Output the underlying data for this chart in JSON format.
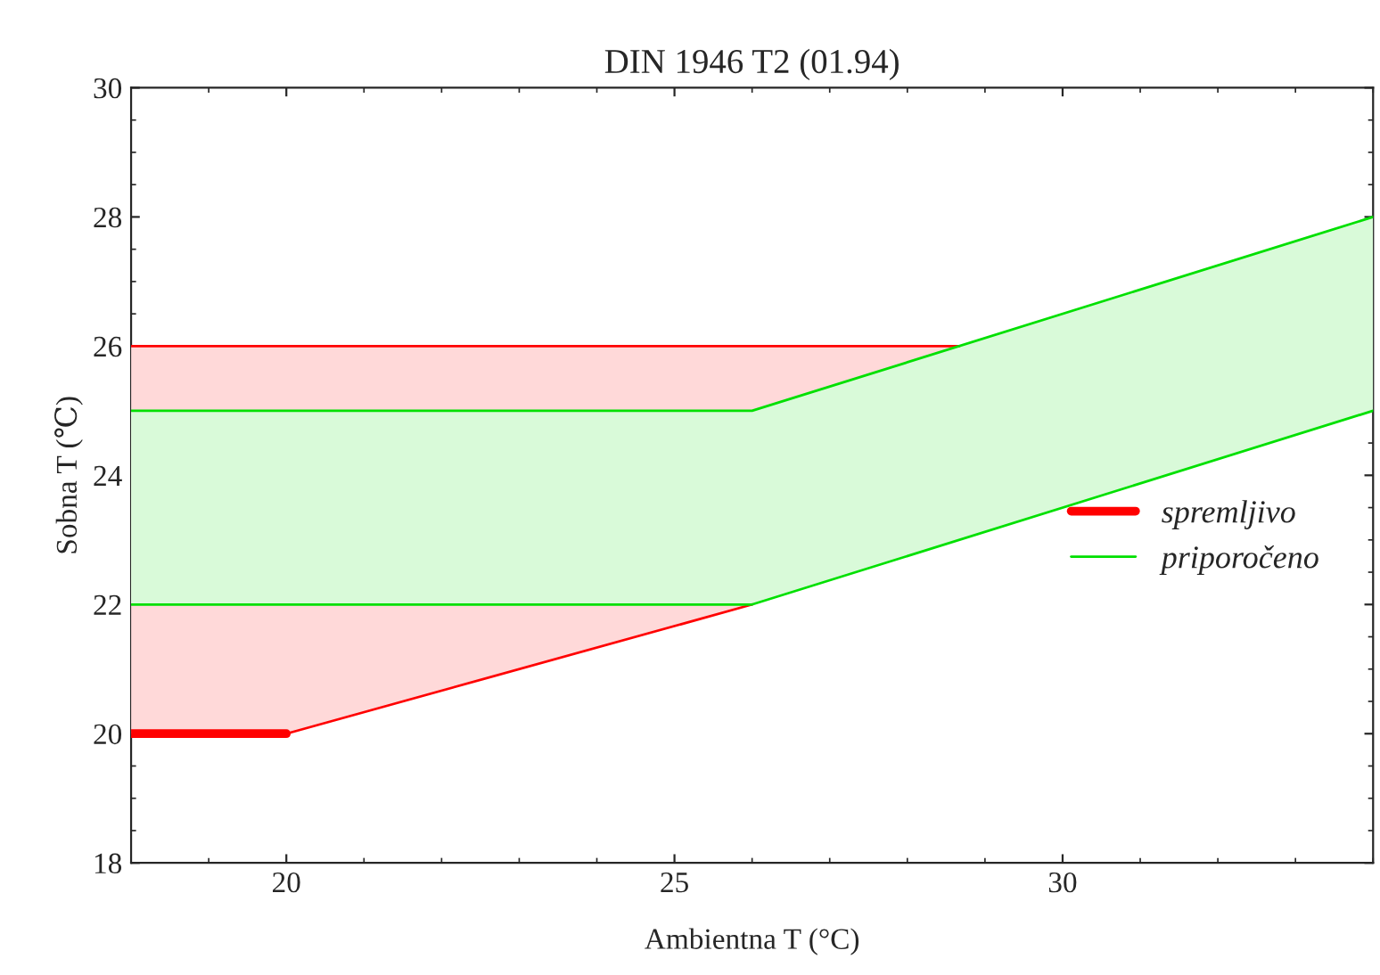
{
  "chart_data": {
    "type": "line",
    "title": "DIN 1946 T2 (01.94)",
    "xlabel": "Ambientna T (°C)",
    "ylabel": "Sobna T (℃)",
    "xlim": [
      18,
      34
    ],
    "ylim": [
      18,
      30
    ],
    "xticks": [
      20,
      25,
      30
    ],
    "yticks": [
      18,
      20,
      22,
      24,
      26,
      28,
      30
    ],
    "grid": false,
    "legend": "right",
    "marker": "none",
    "line_style": "solid",
    "series": [
      {
        "name": "spremljivo",
        "color": "#ff0000",
        "x": [
          18,
          20,
          26,
          28.67
        ],
        "values": [
          26,
          26,
          26,
          26
        ],
        "lower": [
          20,
          20,
          22,
          23
        ],
        "upper": [
          26,
          26,
          26,
          26
        ]
      },
      {
        "name": "priporočeno",
        "color": "#00e000",
        "x": [
          18,
          26,
          34
        ],
        "values": [
          25,
          25,
          28
        ],
        "lower": [
          22,
          22,
          25
        ],
        "upper": [
          25,
          25,
          28
        ]
      },
      {
        "color": "#ff0000",
        "x": [
          20,
          26
        ],
        "values": [
          20,
          22
        ]
      },
      {
        "color": "#00e000",
        "x": [
          18,
          26,
          34
        ],
        "values": [
          22,
          22,
          25
        ]
      },
      {
        "color": "#ff0000",
        "x": [
          18,
          20
        ],
        "values": [
          20,
          20
        ]
      }
    ]
  }
}
